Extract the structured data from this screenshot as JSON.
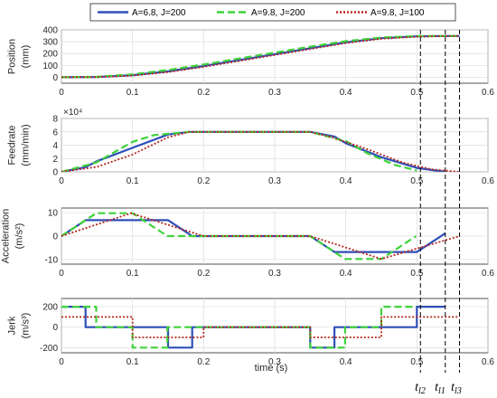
{
  "legend": [
    {
      "label": "A=6.8, J=200",
      "color": "#2f4fb8",
      "dash": ""
    },
    {
      "label": "A=9.8, J=200",
      "color": "#3fd23a",
      "dash": "8,4"
    },
    {
      "label": "A=9.8, J=100",
      "color": "#b5261e",
      "dash": "2,2"
    }
  ],
  "xaxis": {
    "label": "time (s)",
    "ticks": [
      "0",
      "0.1",
      "0.2",
      "0.3",
      "0.4",
      "0.5",
      "0.6"
    ]
  },
  "markers": [
    {
      "t": "t",
      "sub": "l2",
      "x": 0.505
    },
    {
      "t": "t",
      "sub": "l1",
      "x": 0.54
    },
    {
      "t": "t",
      "sub": "l3",
      "x": 0.56
    }
  ],
  "panels": [
    {
      "ylabel_lines": [
        "Position",
        "(mm)"
      ],
      "ticks": [
        "0",
        "100",
        "200",
        "300",
        "400"
      ],
      "exponent": ""
    },
    {
      "ylabel_lines": [
        "Feedrate",
        "(mm/min)"
      ],
      "ticks": [
        "0",
        "2",
        "4",
        "6",
        "8"
      ],
      "exponent": "×10⁴"
    },
    {
      "ylabel_lines": [
        "Acceleration",
        "(m/s²)"
      ],
      "ticks": [
        "-10",
        "0",
        "10"
      ],
      "exponent": ""
    },
    {
      "ylabel_lines": [
        "Jerk",
        "(m/s³)"
      ],
      "ticks": [
        "-200",
        "0",
        "200"
      ],
      "exponent": ""
    }
  ],
  "chart_data": [
    {
      "type": "line",
      "ylabel": "Position (mm)",
      "xlabel": "time (s)",
      "xlim": [
        0,
        0.6
      ],
      "ylim": [
        -50,
        400
      ],
      "grid": true,
      "series": [
        {
          "name": "A=6.8, J=200",
          "x": [
            0,
            0.05,
            0.1,
            0.15,
            0.2,
            0.25,
            0.3,
            0.35,
            0.4,
            0.45,
            0.5,
            0.54,
            0.56
          ],
          "y": [
            0,
            3,
            18,
            50,
            95,
            145,
            195,
            245,
            295,
            330,
            345,
            348,
            348
          ]
        },
        {
          "name": "A=9.8, J=200",
          "x": [
            0,
            0.05,
            0.1,
            0.15,
            0.2,
            0.25,
            0.3,
            0.35,
            0.4,
            0.45,
            0.5,
            0.54,
            0.56
          ],
          "y": [
            0,
            4,
            25,
            62,
            108,
            158,
            208,
            258,
            305,
            335,
            347,
            348,
            348
          ]
        },
        {
          "name": "A=9.8, J=100",
          "x": [
            0,
            0.05,
            0.1,
            0.15,
            0.2,
            0.25,
            0.3,
            0.35,
            0.4,
            0.45,
            0.5,
            0.54,
            0.56
          ],
          "y": [
            0,
            2,
            14,
            44,
            88,
            138,
            188,
            238,
            288,
            325,
            342,
            347,
            348
          ]
        }
      ]
    },
    {
      "type": "line",
      "ylabel": "Feedrate (mm/min)",
      "xlabel": "time (s)",
      "multiplier": "×10⁴",
      "xlim": [
        0,
        0.6
      ],
      "ylim": [
        0,
        8
      ],
      "grid": true,
      "series": [
        {
          "name": "A=6.8, J=200",
          "x": [
            0,
            0.034,
            0.05,
            0.1,
            0.15,
            0.18,
            0.35,
            0.384,
            0.4,
            0.45,
            0.5,
            0.54
          ],
          "y": [
            0,
            0.7,
            1.6,
            3.6,
            5.6,
            6.0,
            6.0,
            5.3,
            4.3,
            2.2,
            0.6,
            0
          ]
        },
        {
          "name": "A=9.8, J=200",
          "x": [
            0,
            0.049,
            0.08,
            0.1,
            0.13,
            0.18,
            0.35,
            0.4,
            0.43,
            0.47,
            0.5
          ],
          "y": [
            0,
            1.4,
            3.3,
            4.5,
            5.5,
            6.0,
            6.0,
            4.6,
            2.8,
            1.0,
            0.2
          ]
        },
        {
          "name": "A=9.8, J=100",
          "x": [
            0,
            0.05,
            0.1,
            0.15,
            0.18,
            0.35,
            0.38,
            0.43,
            0.48,
            0.52,
            0.56
          ],
          "y": [
            0,
            0.75,
            2.6,
            5.2,
            6.0,
            6.0,
            5.2,
            3.4,
            1.4,
            0.4,
            0
          ]
        }
      ]
    },
    {
      "type": "line",
      "ylabel": "Acceleration (m/s²)",
      "xlabel": "time (s)",
      "xlim": [
        0,
        0.6
      ],
      "ylim": [
        -12,
        12
      ],
      "grid": true,
      "series": [
        {
          "name": "A=6.8, J=200",
          "x": [
            0,
            0.034,
            0.15,
            0.184,
            0.35,
            0.384,
            0.5,
            0.54
          ],
          "y": [
            0,
            6.8,
            6.8,
            0,
            0,
            -6.8,
            -6.8,
            1.2
          ]
        },
        {
          "name": "A=9.8, J=200",
          "x": [
            0,
            0.049,
            0.1,
            0.149,
            0.18,
            0.35,
            0.399,
            0.45,
            0.499
          ],
          "y": [
            0,
            9.8,
            9.8,
            0,
            0,
            0,
            -9.8,
            -9.8,
            0
          ]
        },
        {
          "name": "A=9.8, J=100",
          "x": [
            0,
            0.098,
            0.2,
            0.35,
            0.45,
            0.56
          ],
          "y": [
            0,
            9.8,
            0,
            0,
            -9.8,
            0
          ]
        }
      ]
    },
    {
      "type": "line",
      "ylabel": "Jerk (m/s³)",
      "xlabel": "time (s)",
      "xlim": [
        0,
        0.6
      ],
      "ylim": [
        -250,
        280
      ],
      "grid": true,
      "series": [
        {
          "name": "A=6.8, J=200",
          "x": [
            0,
            0.034,
            0.034,
            0.15,
            0.15,
            0.184,
            0.184,
            0.35,
            0.35,
            0.384,
            0.384,
            0.5,
            0.5,
            0.54
          ],
          "y": [
            200,
            200,
            0,
            0,
            -200,
            -200,
            0,
            0,
            -200,
            -200,
            0,
            0,
            200,
            200
          ]
        },
        {
          "name": "A=9.8, J=200",
          "x": [
            0,
            0.049,
            0.049,
            0.1,
            0.1,
            0.149,
            0.149,
            0.35,
            0.35,
            0.399,
            0.399,
            0.45,
            0.45,
            0.499
          ],
          "y": [
            200,
            200,
            0,
            0,
            -200,
            -200,
            0,
            0,
            -200,
            -200,
            0,
            0,
            200,
            200
          ]
        },
        {
          "name": "A=9.8, J=100",
          "x": [
            0,
            0.1,
            0.1,
            0.2,
            0.2,
            0.35,
            0.35,
            0.45,
            0.45,
            0.56
          ],
          "y": [
            100,
            100,
            -100,
            -100,
            0,
            0,
            -100,
            -100,
            100,
            100
          ]
        }
      ]
    }
  ]
}
